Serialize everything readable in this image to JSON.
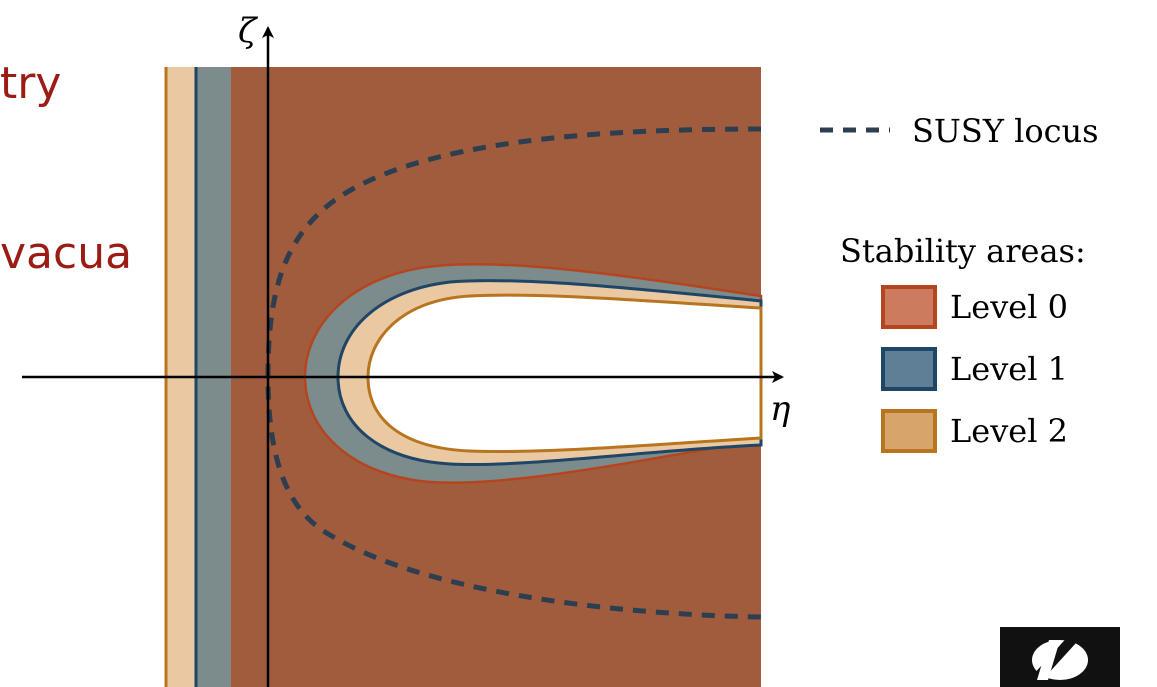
{
  "slide_text": {
    "line1": "try",
    "line2": "vacua"
  },
  "axes": {
    "vertical_label": "ζ",
    "horizontal_label": "η"
  },
  "legend": {
    "locus_label": "SUSY locus",
    "stability_title": "Stability areas:",
    "levels": [
      {
        "label": "Level 0",
        "fill": "#cc7b5e",
        "stroke": "#b5451f"
      },
      {
        "label": "Level 1",
        "fill": "#5e7f96",
        "stroke": "#1f4567"
      },
      {
        "label": "Level 2",
        "fill": "#d7a46c",
        "stroke": "#b8741e"
      }
    ]
  },
  "colors": {
    "region_level0": "#a15c3d",
    "region_level1": "#7c8b8b",
    "region_level2": "#e9c8a2",
    "boundary_level0": "#b5451f",
    "boundary_level1": "#1f4567",
    "boundary_level2": "#b8741e",
    "susy_locus": "#2c3e50"
  },
  "logo": {
    "name": "logo-icon"
  }
}
